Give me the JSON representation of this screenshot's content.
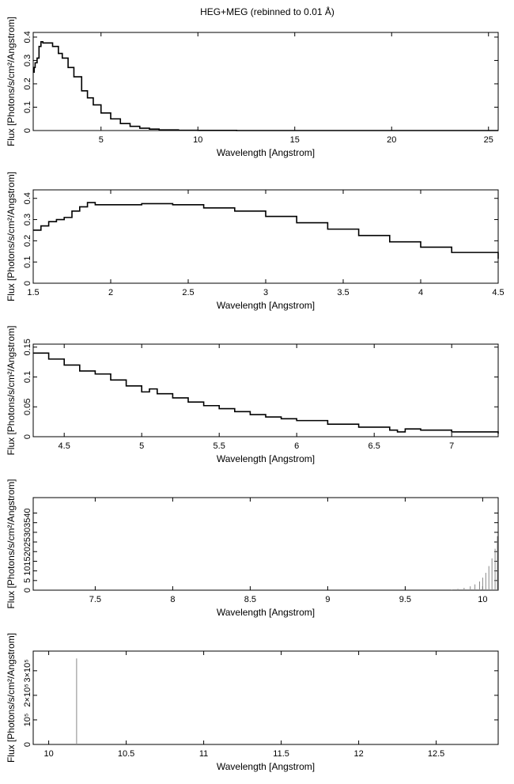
{
  "title": "HEG+MEG (rebinned to 0.01 Å)",
  "chart_data": [
    {
      "type": "line",
      "xlabel": "Wavelength [Angstrom]",
      "ylabel": "Flux [Photons/s/cm²/Angstrom]",
      "xlim": [
        1.5,
        25.5
      ],
      "ylim": [
        0,
        0.42
      ],
      "xticks": [
        5,
        10,
        15,
        20,
        25
      ],
      "yticks": [
        0,
        0.1,
        0.2,
        0.3,
        0.4
      ],
      "xtick_labels": [
        "5",
        "10",
        "15",
        "20",
        "25"
      ],
      "ytick_labels": [
        "0",
        "0.1",
        "0.2",
        "0.3",
        "0.4"
      ],
      "series": [
        {
          "x": [
            1.5,
            1.55,
            1.6,
            1.7,
            1.8,
            1.9,
            2.0,
            2.2,
            2.5,
            2.8,
            3.0,
            3.3,
            3.6,
            4.0,
            4.3,
            4.6,
            5.0,
            5.5,
            6.0,
            6.5,
            7.0,
            7.5,
            8.0,
            9.0,
            10.0,
            12.0,
            15.0,
            20.0,
            25.5
          ],
          "y": [
            0.25,
            0.27,
            0.29,
            0.31,
            0.36,
            0.38,
            0.375,
            0.375,
            0.36,
            0.33,
            0.31,
            0.27,
            0.23,
            0.17,
            0.14,
            0.11,
            0.075,
            0.05,
            0.03,
            0.018,
            0.01,
            0.006,
            0.003,
            0.001,
            0.0005,
            0.0,
            0.0,
            0.0,
            0.0
          ]
        }
      ]
    },
    {
      "type": "line",
      "xlabel": "Wavelength [Angstrom]",
      "ylabel": "Flux [Photons/s/cm²/Angstrom]",
      "xlim": [
        1.5,
        4.5
      ],
      "ylim": [
        0,
        0.44
      ],
      "xticks": [
        1.5,
        2,
        2.5,
        3,
        3.5,
        4,
        4.5
      ],
      "yticks": [
        0,
        0.1,
        0.2,
        0.3,
        0.4
      ],
      "xtick_labels": [
        "1.5",
        "2",
        "2.5",
        "3",
        "3.5",
        "4",
        "4.5"
      ],
      "ytick_labels": [
        "0",
        "0.1",
        "0.2",
        "0.3",
        "0.4"
      ],
      "series": [
        {
          "x": [
            1.5,
            1.55,
            1.6,
            1.65,
            1.7,
            1.75,
            1.8,
            1.85,
            1.9,
            2.0,
            2.2,
            2.4,
            2.6,
            2.8,
            3.0,
            3.2,
            3.4,
            3.6,
            3.8,
            4.0,
            4.2,
            4.5
          ],
          "y": [
            0.25,
            0.27,
            0.29,
            0.3,
            0.31,
            0.34,
            0.36,
            0.38,
            0.37,
            0.37,
            0.375,
            0.37,
            0.355,
            0.34,
            0.315,
            0.285,
            0.255,
            0.225,
            0.195,
            0.17,
            0.145,
            0.115
          ]
        }
      ]
    },
    {
      "type": "line",
      "xlabel": "Wavelength [Angstrom]",
      "ylabel": "Flux [Photons/s/cm²/Angstrom]",
      "xlim": [
        4.3,
        7.3
      ],
      "ylim": [
        0,
        0.155
      ],
      "xticks": [
        4.5,
        5,
        5.5,
        6,
        6.5,
        7
      ],
      "yticks": [
        0,
        0.05,
        0.1,
        0.15
      ],
      "xtick_labels": [
        "4.5",
        "5",
        "5.5",
        "6",
        "6.5",
        "7"
      ],
      "ytick_labels": [
        "0",
        "0.05",
        "0.1",
        "0.15"
      ],
      "series": [
        {
          "x": [
            4.3,
            4.4,
            4.5,
            4.6,
            4.7,
            4.8,
            4.9,
            5.0,
            5.05,
            5.1,
            5.2,
            5.3,
            5.4,
            5.5,
            5.6,
            5.7,
            5.8,
            5.9,
            6.0,
            6.2,
            6.4,
            6.6,
            6.65,
            6.7,
            6.8,
            7.0,
            7.3
          ],
          "y": [
            0.14,
            0.13,
            0.12,
            0.11,
            0.105,
            0.095,
            0.085,
            0.075,
            0.08,
            0.072,
            0.065,
            0.058,
            0.052,
            0.047,
            0.042,
            0.037,
            0.033,
            0.03,
            0.027,
            0.021,
            0.016,
            0.011,
            0.008,
            0.013,
            0.011,
            0.008,
            0.005
          ]
        }
      ]
    },
    {
      "type": "line",
      "xlabel": "Wavelength [Angstrom]",
      "ylabel": "Flux [Photons/s/cm²/Angstrom]",
      "xlim": [
        7.1,
        10.1
      ],
      "ylim": [
        0,
        48
      ],
      "xticks": [
        7.5,
        8,
        8.5,
        9,
        9.5,
        10
      ],
      "yticks": [
        0,
        5,
        10,
        15,
        20,
        25,
        30,
        35,
        40
      ],
      "xtick_labels": [
        "7.5",
        "8",
        "8.5",
        "9",
        "9.5",
        "10"
      ],
      "ytick_labels": [
        "0",
        "5",
        "10",
        "15",
        "20",
        "25",
        "30",
        "35",
        "40"
      ],
      "series": [
        {
          "x": [
            9.8,
            9.84,
            9.88,
            9.92,
            9.95,
            9.98,
            10.0,
            10.02,
            10.04,
            10.06,
            10.08,
            10.1
          ],
          "y": [
            0.3,
            0.7,
            1.2,
            2.0,
            3.0,
            4.5,
            6.5,
            9.0,
            12.5,
            16.5,
            21.5,
            28.0
          ]
        }
      ]
    },
    {
      "type": "line",
      "xlabel": "Wavelength [Angstrom]",
      "ylabel": "Flux [Photons/s/cm²/Angstrom]",
      "xlim": [
        9.9,
        12.9
      ],
      "ylim": [
        0,
        380000
      ],
      "xticks": [
        10,
        10.5,
        11,
        11.5,
        12,
        12.5
      ],
      "yticks": [
        0,
        100000,
        200000,
        300000
      ],
      "xtick_labels": [
        "10",
        "10.5",
        "11",
        "11.5",
        "12",
        "12.5"
      ],
      "ytick_labels": [
        "0",
        "10⁵",
        "2×10⁵",
        "3×10⁵"
      ],
      "series": [
        {
          "x": [
            10.18
          ],
          "y": [
            350000
          ]
        }
      ]
    }
  ]
}
